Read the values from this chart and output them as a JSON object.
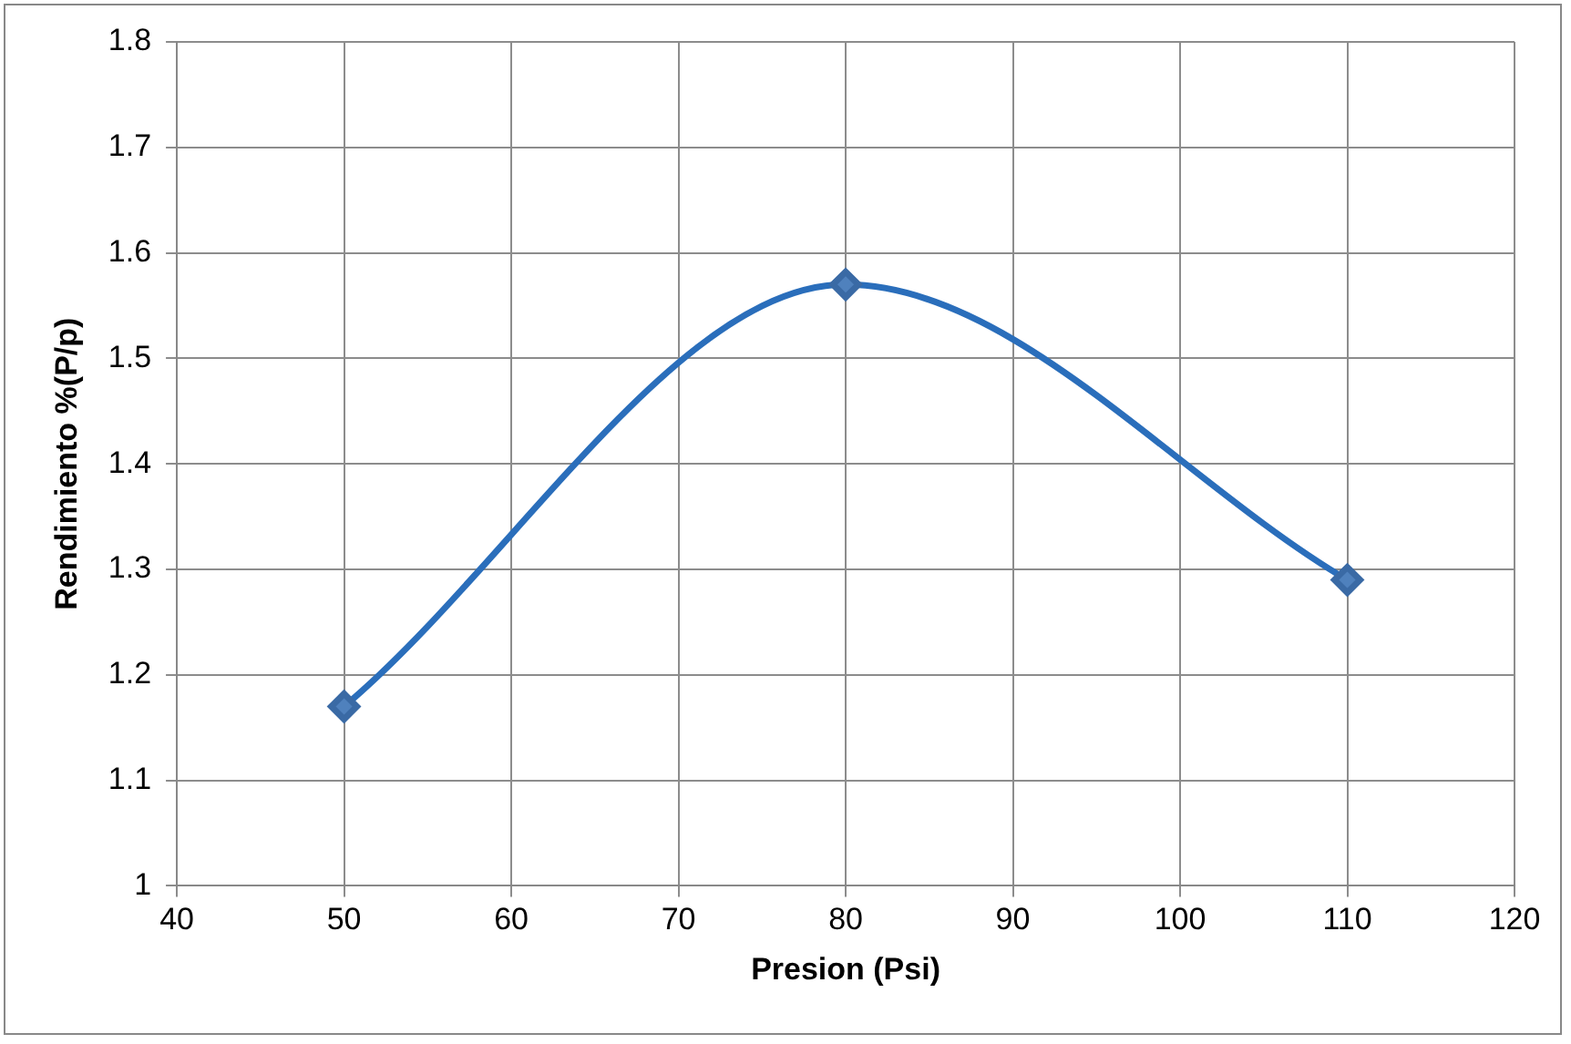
{
  "chart_data": {
    "type": "line",
    "xlabel": "Presion (Psi)",
    "ylabel": "Rendimiento %(P/p)",
    "x": [
      50,
      80,
      110
    ],
    "series": [
      {
        "color": "#2a6ebb",
        "values": [
          1.17,
          1.57,
          1.29
        ]
      }
    ],
    "xlim": [
      40,
      120
    ],
    "xticks": [
      40,
      50,
      60,
      70,
      80,
      90,
      100,
      110,
      120
    ],
    "ylim": [
      1,
      1.8
    ],
    "yticks": [
      1,
      1.1,
      1.2,
      1.3,
      1.4,
      1.5,
      1.6,
      1.7,
      1.8
    ],
    "grid": true,
    "marker": "diamond",
    "line_style": "solid",
    "legend": false
  }
}
